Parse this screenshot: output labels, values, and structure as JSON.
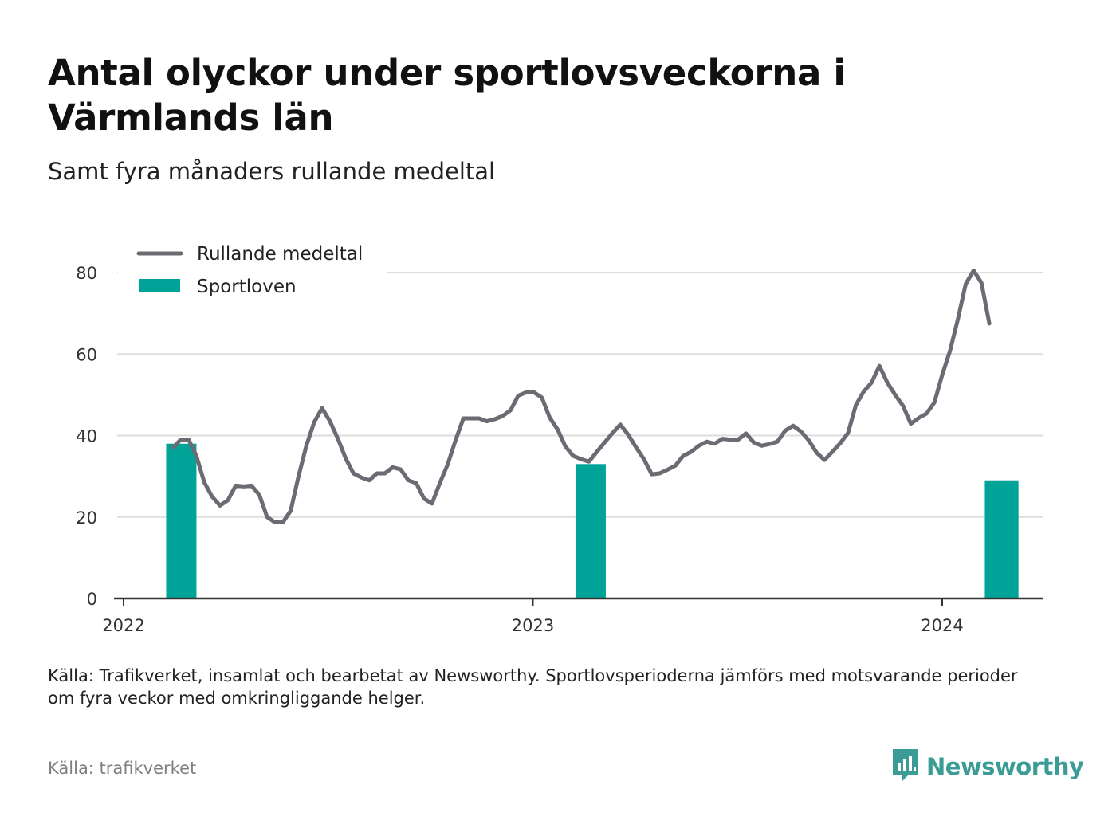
{
  "title": "Antal olyckor under sportlovsveckorna i Värmlands län",
  "subtitle": "Samt fyra månaders rullande medeltal",
  "caption": "Källa: Trafikverket, insamlat och bearbetat av Newsworthy. Sportlovsperioderna jämförs med motsvarande perioder om fyra veckor med omkringliggande helger.",
  "source": "Källa: trafikverket",
  "brand": {
    "name": "Newsworthy",
    "icon": "newsworthy-logo-icon",
    "color": "#3a9c95"
  },
  "colors": {
    "line": "#6b6b73",
    "bars": "#00a398",
    "grid": "#dddddd",
    "axis": "#333333"
  },
  "chart_data": {
    "type": "bar",
    "title": "Antal olyckor under sportlovsveckorna i Värmlands län",
    "subtitle": "Samt fyra månaders rullande medeltal",
    "xlabel": "",
    "ylabel": "",
    "ylim": [
      0,
      80
    ],
    "yticks": [
      0,
      20,
      40,
      60,
      80
    ],
    "xlim": [
      "2022-01-01",
      "2024-03-31"
    ],
    "xticks": [
      {
        "date": "2022-01-01",
        "label": "2022"
      },
      {
        "date": "2023-01-01",
        "label": "2023"
      },
      {
        "date": "2024-01-01",
        "label": "2024"
      }
    ],
    "grid": true,
    "legend_position": "top-left",
    "series": [
      {
        "name": "Sportloven",
        "type": "bar",
        "color": "#00a398",
        "points": [
          {
            "start": "2022-02-08",
            "end": "2022-03-07",
            "value": 38
          },
          {
            "start": "2023-02-08",
            "end": "2023-03-07",
            "value": 33
          },
          {
            "start": "2024-02-08",
            "end": "2024-03-09",
            "value": 29
          }
        ]
      },
      {
        "name": "Rullande medeltal",
        "type": "line",
        "color": "#6b6b73",
        "points": [
          [
            "2022-02-14",
            37
          ],
          [
            "2022-02-21",
            39
          ],
          [
            "2022-02-28",
            39
          ],
          [
            "2022-03-07",
            35
          ],
          [
            "2022-03-14",
            28.5
          ],
          [
            "2022-03-21",
            25
          ],
          [
            "2022-03-28",
            22.8
          ],
          [
            "2022-04-04",
            24.1
          ],
          [
            "2022-04-11",
            27.7
          ],
          [
            "2022-04-18",
            27.5
          ],
          [
            "2022-04-25",
            27.7
          ],
          [
            "2022-05-02",
            25.5
          ],
          [
            "2022-05-09",
            20
          ],
          [
            "2022-05-16",
            18.7
          ],
          [
            "2022-05-23",
            18.7
          ],
          [
            "2022-05-30",
            21.5
          ],
          [
            "2022-06-06",
            30
          ],
          [
            "2022-06-13",
            37.5
          ],
          [
            "2022-06-20",
            43.3
          ],
          [
            "2022-06-27",
            46.7
          ],
          [
            "2022-07-04",
            43.5
          ],
          [
            "2022-07-11",
            39.3
          ],
          [
            "2022-07-18",
            34.4
          ],
          [
            "2022-07-25",
            30.7
          ],
          [
            "2022-08-01",
            29.7
          ],
          [
            "2022-08-08",
            29
          ],
          [
            "2022-08-15",
            30.7
          ],
          [
            "2022-08-22",
            30.7
          ],
          [
            "2022-08-29",
            32.2
          ],
          [
            "2022-09-05",
            31.7
          ],
          [
            "2022-09-12",
            29
          ],
          [
            "2022-09-19",
            28.3
          ],
          [
            "2022-09-26",
            24.5
          ],
          [
            "2022-10-03",
            23.3
          ],
          [
            "2022-10-10",
            28.3
          ],
          [
            "2022-10-17",
            32.9
          ],
          [
            "2022-10-24",
            38.8
          ],
          [
            "2022-10-31",
            44.2
          ],
          [
            "2022-11-07",
            44.2
          ],
          [
            "2022-11-14",
            44.2
          ],
          [
            "2022-11-21",
            43.5
          ],
          [
            "2022-11-28",
            44
          ],
          [
            "2022-12-05",
            44.8
          ],
          [
            "2022-12-12",
            46.2
          ],
          [
            "2022-12-19",
            49.8
          ],
          [
            "2022-12-26",
            50.6
          ],
          [
            "2023-01-02",
            50.6
          ],
          [
            "2023-01-09",
            49.3
          ],
          [
            "2023-01-16",
            44.4
          ],
          [
            "2023-01-23",
            41.5
          ],
          [
            "2023-01-30",
            37.3
          ],
          [
            "2023-02-06",
            35
          ],
          [
            "2023-02-13",
            34.2
          ],
          [
            "2023-02-20",
            33.6
          ],
          [
            "2023-02-27",
            36
          ],
          [
            "2023-03-06",
            38.3
          ],
          [
            "2023-03-13",
            40.6
          ],
          [
            "2023-03-20",
            42.7
          ],
          [
            "2023-03-27",
            40.2
          ],
          [
            "2023-04-03",
            37.1
          ],
          [
            "2023-04-10",
            34.2
          ],
          [
            "2023-04-17",
            30.5
          ],
          [
            "2023-04-24",
            30.7
          ],
          [
            "2023-05-01",
            31.6
          ],
          [
            "2023-05-08",
            32.6
          ],
          [
            "2023-05-15",
            35
          ],
          [
            "2023-05-22",
            36
          ],
          [
            "2023-05-29",
            37.5
          ],
          [
            "2023-06-05",
            38.5
          ],
          [
            "2023-06-12",
            38
          ],
          [
            "2023-06-19",
            39.2
          ],
          [
            "2023-06-26",
            39
          ],
          [
            "2023-07-03",
            39
          ],
          [
            "2023-07-10",
            40.5
          ],
          [
            "2023-07-17",
            38.3
          ],
          [
            "2023-07-24",
            37.5
          ],
          [
            "2023-07-31",
            37.9
          ],
          [
            "2023-08-07",
            38.5
          ],
          [
            "2023-08-14",
            41.2
          ],
          [
            "2023-08-21",
            42.4
          ],
          [
            "2023-08-28",
            41
          ],
          [
            "2023-09-04",
            38.8
          ],
          [
            "2023-09-11",
            35.8
          ],
          [
            "2023-09-18",
            34
          ],
          [
            "2023-09-25",
            36
          ],
          [
            "2023-10-02",
            38.1
          ],
          [
            "2023-10-09",
            40.6
          ],
          [
            "2023-10-16",
            47.5
          ],
          [
            "2023-10-23",
            50.8
          ],
          [
            "2023-10-30",
            53
          ],
          [
            "2023-11-06",
            57.1
          ],
          [
            "2023-11-13",
            53
          ],
          [
            "2023-11-20",
            50
          ],
          [
            "2023-11-27",
            47.3
          ],
          [
            "2023-12-04",
            42.9
          ],
          [
            "2023-12-11",
            44.3
          ],
          [
            "2023-12-18",
            45.4
          ],
          [
            "2023-12-25",
            48.1
          ],
          [
            "2024-01-01",
            54.9
          ],
          [
            "2024-01-08",
            60.8
          ],
          [
            "2024-01-15",
            68.6
          ],
          [
            "2024-01-22",
            77.2
          ],
          [
            "2024-01-29",
            80.5
          ],
          [
            "2024-02-05",
            77.5
          ],
          [
            "2024-02-12",
            67.5
          ]
        ]
      }
    ]
  }
}
